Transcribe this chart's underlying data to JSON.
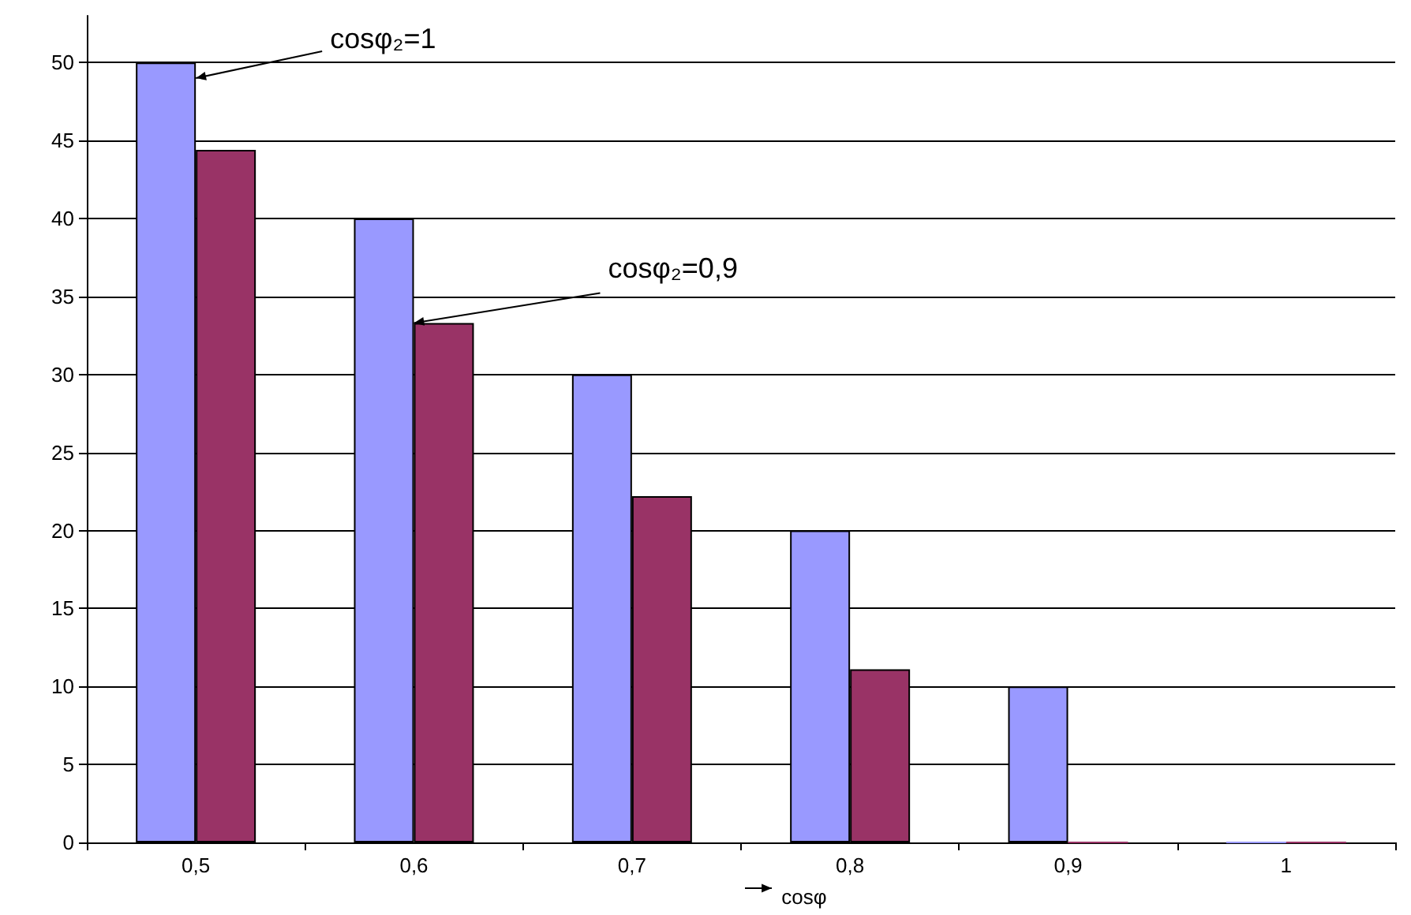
{
  "chart_data": {
    "type": "bar",
    "xlabel": "cosφ",
    "categories": [
      "0,5",
      "0,6",
      "0,7",
      "0,8",
      "0,9",
      "1"
    ],
    "series": [
      {
        "color": "#9999ff",
        "values": [
          50,
          40,
          30,
          20,
          10,
          0
        ]
      },
      {
        "color": "#993366",
        "values": [
          44.4,
          33.3,
          22.2,
          11.1,
          0,
          0
        ]
      }
    ],
    "ylim": [
      0,
      53
    ],
    "yticks": [
      0,
      5,
      10,
      15,
      20,
      25,
      30,
      35,
      40,
      45,
      50
    ],
    "grid": "y",
    "annotations": [
      {
        "text": "cosφ₂=1",
        "x": "0,5",
        "y": 49
      },
      {
        "text": "cosφ₂=0,9",
        "x": "0,6",
        "y": 33.3
      }
    ]
  }
}
